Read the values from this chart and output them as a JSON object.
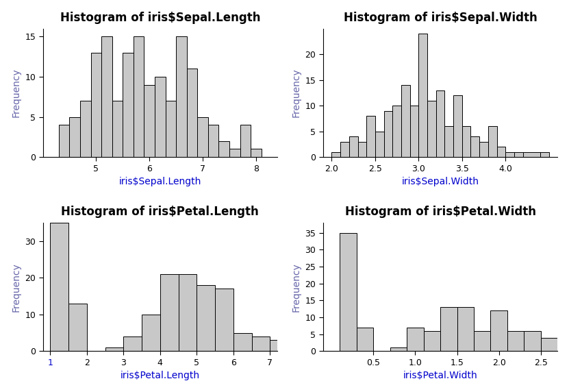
{
  "plots": [
    {
      "title": "Histogram of iris$Sepal.Length",
      "xlabel": "iris$Sepal.Length",
      "ylabel": "Frequency",
      "bar_color": "#c8c8c8",
      "edge_color": "#000000",
      "xlim": [
        4.0,
        8.4
      ],
      "ylim": [
        0,
        16
      ],
      "yticks": [
        0,
        5,
        10,
        15
      ],
      "xticks": [
        5,
        6,
        7,
        8
      ],
      "bin_edges": [
        4.3,
        4.5,
        4.7,
        4.9,
        5.1,
        5.3,
        5.5,
        5.7,
        5.9,
        6.1,
        6.3,
        6.5,
        6.7,
        6.9,
        7.1,
        7.3,
        7.5,
        7.7,
        7.9
      ],
      "counts": [
        4,
        5,
        7,
        13,
        15,
        7,
        13,
        15,
        9,
        10,
        7,
        15,
        11,
        5,
        4,
        2,
        1,
        4,
        1
      ],
      "xlabel_color": "#0000cc"
    },
    {
      "title": "Histogram of iris$Sepal.Width",
      "xlabel": "iris$Sepal.Width",
      "ylabel": "Frequency",
      "bar_color": "#c8c8c8",
      "edge_color": "#000000",
      "xlim": [
        1.9,
        4.6
      ],
      "ylim": [
        0,
        25
      ],
      "yticks": [
        0,
        5,
        10,
        15,
        20
      ],
      "xticks": [
        2.0,
        2.5,
        3.0,
        3.5,
        4.0
      ],
      "bin_edges": [
        2.0,
        2.1,
        2.2,
        2.3,
        2.4,
        2.5,
        2.6,
        2.7,
        2.8,
        2.9,
        3.0,
        3.1,
        3.2,
        3.3,
        3.4,
        3.5,
        3.6,
        3.7,
        3.8,
        3.9,
        4.0,
        4.1,
        4.2,
        4.4
      ],
      "counts": [
        1,
        3,
        4,
        3,
        8,
        5,
        9,
        10,
        14,
        10,
        24,
        11,
        13,
        6,
        12,
        6,
        4,
        3,
        6,
        2,
        1,
        1,
        1,
        1
      ],
      "xlabel_color": "#0000cc"
    },
    {
      "title": "Histogram of iris$Petal.Length",
      "xlabel": "iris$Petal.Length",
      "ylabel": "Frequency",
      "bar_color": "#c8c8c8",
      "edge_color": "#000000",
      "xlim": [
        0.8,
        7.2
      ],
      "ylim": [
        0,
        35
      ],
      "yticks": [
        0,
        10,
        20,
        30
      ],
      "xticks": [
        1,
        2,
        3,
        4,
        5,
        6,
        7
      ],
      "bin_edges": [
        1.0,
        1.5,
        2.0,
        2.5,
        3.0,
        3.5,
        4.0,
        4.5,
        5.0,
        5.5,
        6.0,
        6.5,
        7.0
      ],
      "counts": [
        35,
        13,
        0,
        1,
        4,
        10,
        21,
        21,
        18,
        17,
        5,
        4,
        3
      ],
      "xlabel_color": "#0000cc",
      "xtick_colors": [
        "#0000cc",
        "#000000",
        "#000000",
        "#000000",
        "#000000",
        "#000000",
        "#000000"
      ]
    },
    {
      "title": "Histogram of iris$Petal.Width",
      "xlabel": "iris$Petal.Width",
      "ylabel": "Frequency",
      "bar_color": "#c8c8c8",
      "edge_color": "#000000",
      "xlim": [
        -0.1,
        2.7
      ],
      "ylim": [
        0,
        38
      ],
      "yticks": [
        0,
        5,
        10,
        15,
        20,
        25,
        30,
        35
      ],
      "xticks": [
        0.5,
        1.0,
        1.5,
        2.0,
        2.5
      ],
      "bin_edges": [
        0.1,
        0.3,
        0.5,
        0.7,
        0.9,
        1.1,
        1.3,
        1.5,
        1.7,
        1.9,
        2.1,
        2.3,
        2.5
      ],
      "counts": [
        35,
        7,
        0,
        1,
        7,
        6,
        13,
        13,
        6,
        12,
        6,
        6,
        4
      ],
      "xlabel_color": "#0000cc"
    }
  ],
  "bg_color": "#ffffff",
  "title_fontsize": 12,
  "label_fontsize": 10,
  "tick_fontsize": 9
}
